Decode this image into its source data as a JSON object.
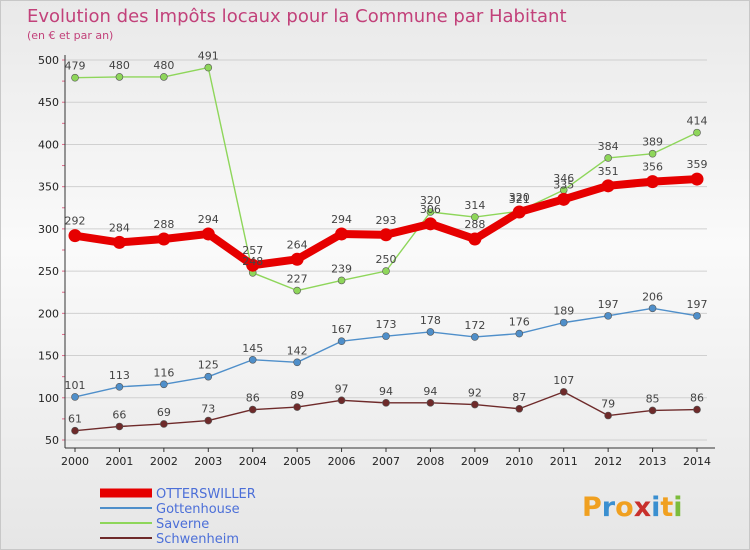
{
  "title": "Evolution des Impôts locaux pour la Commune par Habitant",
  "subtitle": "(en € et par an)",
  "brand": "Proxiti",
  "chart_data": {
    "type": "line",
    "title": "Evolution des Impôts locaux pour la Commune par Habitant",
    "subtitle": "(en € et par an)",
    "xlabel": "",
    "ylabel": "",
    "x": [
      "2000",
      "2001",
      "2002",
      "2003",
      "2004",
      "2005",
      "2006",
      "2007",
      "2008",
      "2009",
      "2010",
      "2011",
      "2012",
      "2013",
      "2014"
    ],
    "yticks": [
      50,
      100,
      150,
      200,
      250,
      300,
      350,
      400,
      450,
      500
    ],
    "ylim": [
      50,
      500
    ],
    "grid": "horizontal",
    "legend_position": "bottom-left",
    "series": [
      {
        "name": "OTTERSWILLER",
        "color": "#e60000",
        "values": [
          292,
          284,
          288,
          294,
          257,
          264,
          294,
          293,
          306,
          288,
          320,
          335,
          351,
          356,
          359
        ]
      },
      {
        "name": "Gottenhouse",
        "color": "#4f8fca",
        "values": [
          101,
          113,
          116,
          125,
          145,
          142,
          167,
          173,
          178,
          172,
          176,
          189,
          197,
          206,
          197
        ]
      },
      {
        "name": "Saverne",
        "color": "#8ed65a",
        "values": [
          479,
          480,
          480,
          491,
          248,
          227,
          239,
          250,
          320,
          314,
          321,
          346,
          384,
          389,
          414
        ]
      },
      {
        "name": "Schwenheim",
        "color": "#6e2a2a",
        "values": [
          61,
          66,
          69,
          73,
          86,
          89,
          97,
          94,
          94,
          92,
          87,
          107,
          79,
          85,
          86
        ]
      }
    ]
  }
}
